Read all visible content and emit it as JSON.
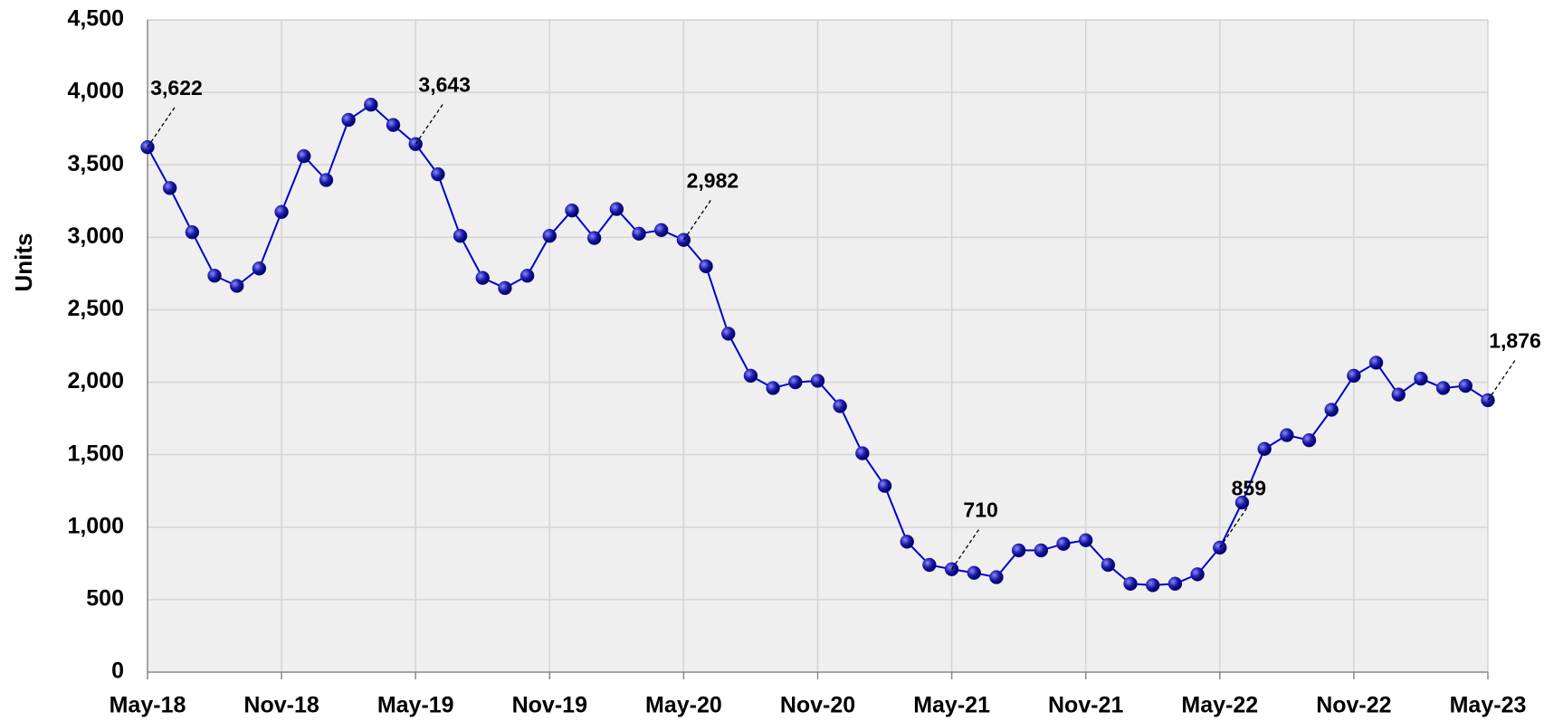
{
  "chart_data": {
    "type": "line",
    "ylabel": "Units",
    "categories": [
      "May-18",
      null,
      null,
      null,
      null,
      null,
      "Nov-18",
      null,
      null,
      null,
      null,
      null,
      "May-19",
      null,
      null,
      null,
      null,
      null,
      "Nov-19",
      null,
      null,
      null,
      null,
      null,
      "May-20",
      null,
      null,
      null,
      null,
      null,
      "Nov-20",
      null,
      null,
      null,
      null,
      null,
      "May-21",
      null,
      null,
      null,
      null,
      null,
      "Nov-21",
      null,
      null,
      null,
      null,
      null,
      "May-22",
      null,
      null,
      null,
      null,
      null,
      "Nov-22",
      null,
      null,
      null,
      null,
      null,
      "May-23"
    ],
    "series": [
      {
        "name": "Units",
        "color": "#0000cc",
        "marker_color": "#1a1aa8",
        "values": [
          3622,
          3340,
          3035,
          2735,
          2665,
          2785,
          3175,
          3560,
          3395,
          3810,
          3915,
          3775,
          3643,
          3435,
          3010,
          2720,
          2650,
          2735,
          3010,
          3185,
          2995,
          3195,
          3025,
          3050,
          2982,
          2800,
          2335,
          2045,
          1960,
          2000,
          2010,
          1835,
          1510,
          1285,
          900,
          740,
          710,
          685,
          655,
          840,
          840,
          885,
          910,
          740,
          610,
          600,
          610,
          675,
          859,
          1170,
          1540,
          1635,
          1600,
          1810,
          2045,
          2135,
          1915,
          2025,
          1960,
          1975,
          1876
        ],
        "value_labels": [
          "3,622",
          null,
          null,
          null,
          null,
          null,
          null,
          null,
          null,
          null,
          null,
          null,
          "3,643",
          null,
          null,
          null,
          null,
          null,
          null,
          null,
          null,
          null,
          null,
          null,
          "2,982",
          null,
          null,
          null,
          null,
          null,
          null,
          null,
          null,
          null,
          null,
          null,
          "710",
          null,
          null,
          null,
          null,
          null,
          null,
          null,
          null,
          null,
          null,
          null,
          "859",
          null,
          null,
          null,
          null,
          null,
          null,
          null,
          null,
          null,
          null,
          null,
          "1,876"
        ]
      }
    ],
    "ylim": [
      0,
      4500
    ],
    "yticks": [
      0,
      500,
      {
        "value": 1000,
        "label": "1,000"
      },
      {
        "value": 1500,
        "label": "1,500"
      },
      {
        "value": 2000,
        "label": "2,000"
      },
      {
        "value": 2500,
        "label": "2,500"
      },
      {
        "value": 3000,
        "label": "3,000"
      },
      {
        "value": 3500,
        "label": "3,500"
      },
      {
        "value": 4000,
        "label": "4,000"
      },
      {
        "value": 4500,
        "label": "4,500"
      }
    ],
    "grid": true
  }
}
